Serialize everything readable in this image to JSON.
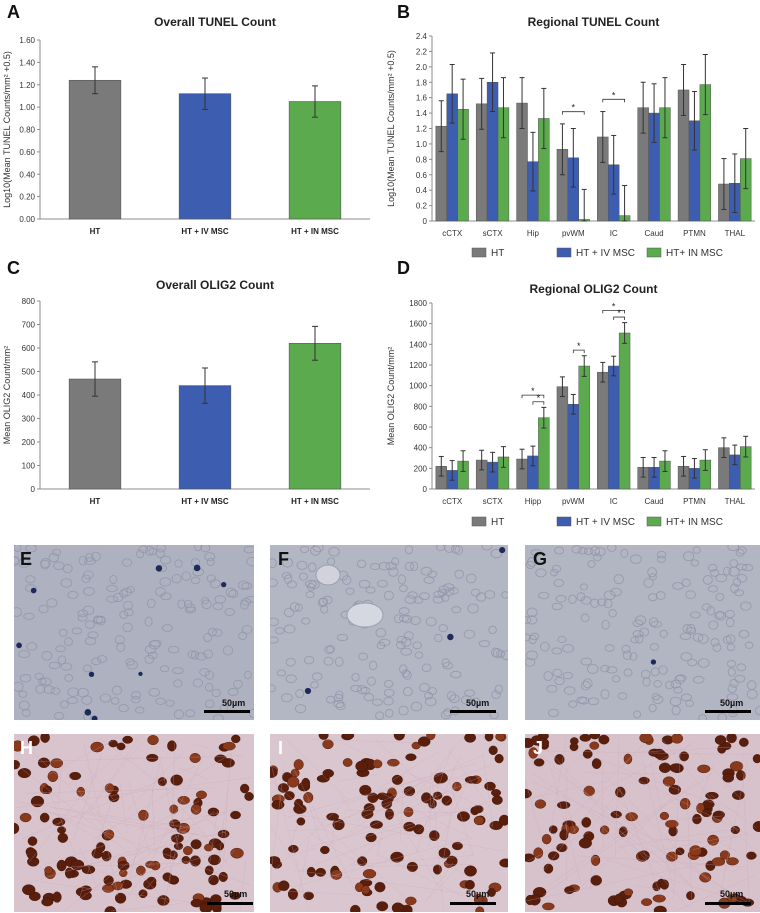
{
  "colors": {
    "ht": "#7a7a7a",
    "iv": "#3d5db0",
    "in": "#5caa4e",
    "axis": "#8c8c8c",
    "error": "#333333"
  },
  "panels": {
    "A": {
      "letter": "A"
    },
    "B": {
      "letter": "B"
    },
    "C": {
      "letter": "C"
    },
    "D": {
      "letter": "D"
    },
    "E": {
      "letter": "E",
      "scale": "50µm"
    },
    "F": {
      "letter": "F",
      "scale": "50µm"
    },
    "G": {
      "letter": "G",
      "scale": "50µm"
    },
    "H": {
      "letter": "H",
      "scale": "50µm"
    },
    "I": {
      "letter": "I",
      "scale": "50µm"
    },
    "J": {
      "letter": "J",
      "scale": "50µm"
    }
  },
  "chart_data": [
    {
      "id": "A",
      "type": "bar",
      "title": "Overall TUNEL Count",
      "ylabel": "Log10(Mean TUNEL Counts/mm² +0.5)",
      "ylim": [
        0,
        1.6
      ],
      "yticks": [
        "0.00",
        "0.20",
        "0.40",
        "0.60",
        "0.80",
        "1.00",
        "1.20",
        "1.40",
        "1.60"
      ],
      "categories": [
        "HT",
        "HT + IV MSC",
        "HT + IN MSC"
      ],
      "values": [
        1.24,
        1.12,
        1.05
      ],
      "errors": [
        0.12,
        0.14,
        0.14
      ],
      "grid": false
    },
    {
      "id": "B",
      "type": "bar",
      "title": "Regional TUNEL Count",
      "ylabel": "Log10(Mean TUNEL Counts/mm² +0.5)",
      "ylim": [
        0,
        2.4
      ],
      "yticks": [
        "0",
        "0.2",
        "0.4",
        "0.6",
        "0.8",
        "1.0",
        "1.2",
        "1.4",
        "1.6",
        "1.8",
        "2.0",
        "2.2",
        "2.4"
      ],
      "categories": [
        "cCTX",
        "sCTX",
        "Hip",
        "pvWM",
        "IC",
        "Caud",
        "PTMN",
        "THAL"
      ],
      "series": [
        {
          "name": "HT",
          "values": [
            1.23,
            1.52,
            1.53,
            0.93,
            1.09,
            1.47,
            1.7,
            0.48
          ],
          "errors": [
            0.33,
            0.33,
            0.33,
            0.33,
            0.33,
            0.33,
            0.33,
            0.33
          ]
        },
        {
          "name": "HT + IV MSC",
          "values": [
            1.65,
            1.8,
            0.77,
            0.82,
            0.73,
            1.4,
            1.3,
            0.49
          ],
          "errors": [
            0.38,
            0.38,
            0.38,
            0.38,
            0.38,
            0.38,
            0.38,
            0.38
          ]
        },
        {
          "name": "HT+ IN MSC",
          "values": [
            1.45,
            1.47,
            1.33,
            0.02,
            0.07,
            1.47,
            1.77,
            0.81
          ],
          "errors": [
            0.39,
            0.39,
            0.39,
            0.39,
            0.39,
            0.39,
            0.39,
            0.39
          ]
        }
      ],
      "significance": [
        {
          "category": 3,
          "from": 0,
          "to": 2,
          "label": "*"
        },
        {
          "category": 4,
          "from": 0,
          "to": 2,
          "label": "*"
        }
      ],
      "legend": "bottom",
      "grid": false
    },
    {
      "id": "C",
      "type": "bar",
      "title": "Overall OLIG2 Count",
      "ylabel": "Mean OLIG2 Count/mm²",
      "ylim": [
        0,
        800
      ],
      "yticks": [
        "0",
        "100",
        "200",
        "300",
        "400",
        "500",
        "600",
        "700",
        "800"
      ],
      "categories": [
        "HT",
        "HT + IV MSC",
        "HT + IN MSC"
      ],
      "values": [
        468,
        440,
        620
      ],
      "errors": [
        73,
        75,
        72
      ],
      "grid": false
    },
    {
      "id": "D",
      "type": "bar",
      "title": "Regional OLIG2 Count",
      "ylabel": "Mean OLIG2 Count/mm²",
      "ylim": [
        0,
        1800
      ],
      "yticks": [
        "0",
        "200",
        "400",
        "600",
        "800",
        "1000",
        "1200",
        "1400",
        "1600",
        "1800"
      ],
      "categories": [
        "cCTX",
        "sCTX",
        "Hipp",
        "pvWM",
        "IC",
        "Caud",
        "PTMN",
        "THAL"
      ],
      "series": [
        {
          "name": "HT",
          "values": [
            220,
            280,
            290,
            990,
            1130,
            210,
            220,
            400
          ],
          "errors": [
            95,
            95,
            95,
            95,
            95,
            95,
            95,
            95
          ]
        },
        {
          "name": "HT + IV MSC",
          "values": [
            180,
            260,
            320,
            820,
            1190,
            210,
            200,
            330
          ],
          "errors": [
            95,
            95,
            95,
            95,
            95,
            95,
            95,
            95
          ]
        },
        {
          "name": "HT+ IN MSC",
          "values": [
            270,
            310,
            690,
            1190,
            1510,
            270,
            280,
            410
          ],
          "errors": [
            100,
            100,
            100,
            100,
            100,
            100,
            100,
            100
          ]
        }
      ],
      "significance": [
        {
          "category": 2,
          "from": 0,
          "to": 2,
          "label": "*"
        },
        {
          "category": 2,
          "from": 1,
          "to": 2,
          "label": "*"
        },
        {
          "category": 3,
          "from": 1,
          "to": 2,
          "label": "*"
        },
        {
          "category": 4,
          "from": 0,
          "to": 2,
          "label": "*"
        },
        {
          "category": 4,
          "from": 1,
          "to": 2,
          "label": "*"
        }
      ],
      "legend": "bottom",
      "grid": false
    }
  ]
}
